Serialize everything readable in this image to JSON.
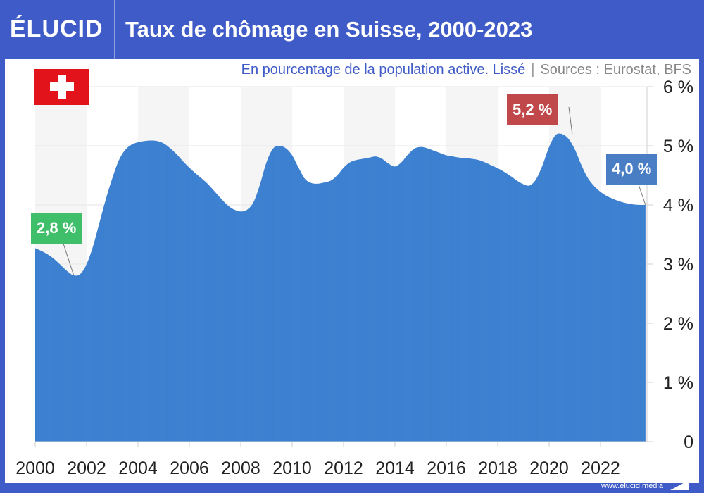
{
  "header": {
    "logo": "ÉLUCID",
    "title": "Taux de chômage en Suisse, 2000-2023"
  },
  "subtitle": {
    "description": "En pourcentage de la population active. Lissé",
    "separator": "|",
    "sources": "Sources : Eurostat, BFS"
  },
  "flag": {
    "country": "Suisse",
    "icon": "swiss-flag-icon"
  },
  "footer": {
    "url": "www.elucid.media",
    "icon": "elucid-mark-icon"
  },
  "colors": {
    "header_bg": "#3f5bc7",
    "area": "#3b7fd0",
    "label_min": "#3fbf6a",
    "label_max": "#c0474a",
    "label_last": "#4a7ec4",
    "flag_red": "#e3131b"
  },
  "chart_data": {
    "type": "area",
    "title": "Taux de chômage en Suisse, 2000-2023",
    "subtitle": "En pourcentage de la population active. Lissé",
    "xlabel": "",
    "ylabel": "",
    "xlim": [
      2000,
      2023.75
    ],
    "ylim": [
      0,
      6
    ],
    "x_ticks": [
      2000,
      2002,
      2004,
      2006,
      2008,
      2010,
      2012,
      2014,
      2016,
      2018,
      2020,
      2022
    ],
    "x_tick_labels": [
      "2000",
      "2002",
      "2004",
      "2006",
      "2008",
      "2010",
      "2012",
      "2014",
      "2016",
      "2018",
      "2020",
      "2022"
    ],
    "y_ticks": [
      0,
      1,
      2,
      3,
      4,
      5,
      6
    ],
    "y_tick_labels": [
      "0",
      "1 %",
      "2 %",
      "3 %",
      "4 %",
      "5 %",
      "6 %"
    ],
    "y_axis_side": "right",
    "grid": true,
    "alternating_year_bands": true,
    "series": [
      {
        "name": "Taux de chômage",
        "x": [
          2000.0,
          2000.25,
          2000.5,
          2000.75,
          2001.0,
          2001.25,
          2001.5,
          2001.75,
          2002.0,
          2002.25,
          2002.5,
          2002.75,
          2003.0,
          2003.25,
          2003.5,
          2003.75,
          2004.0,
          2004.25,
          2004.5,
          2004.75,
          2005.0,
          2005.25,
          2005.5,
          2005.75,
          2006.0,
          2006.25,
          2006.5,
          2006.75,
          2007.0,
          2007.25,
          2007.5,
          2007.75,
          2008.0,
          2008.25,
          2008.5,
          2008.75,
          2009.0,
          2009.25,
          2009.5,
          2009.75,
          2010.0,
          2010.25,
          2010.5,
          2010.75,
          2011.0,
          2011.25,
          2011.5,
          2011.75,
          2012.0,
          2012.25,
          2012.5,
          2012.75,
          2013.0,
          2013.25,
          2013.5,
          2013.75,
          2014.0,
          2014.25,
          2014.5,
          2014.75,
          2015.0,
          2015.25,
          2015.5,
          2015.75,
          2016.0,
          2016.25,
          2016.5,
          2016.75,
          2017.0,
          2017.25,
          2017.5,
          2017.75,
          2018.0,
          2018.25,
          2018.5,
          2018.75,
          2019.0,
          2019.25,
          2019.5,
          2019.75,
          2020.0,
          2020.25,
          2020.5,
          2020.75,
          2021.0,
          2021.25,
          2021.5,
          2021.75,
          2022.0,
          2022.25,
          2022.5,
          2022.75,
          2023.0,
          2023.25,
          2023.5,
          2023.75
        ],
        "values": [
          3.27,
          3.22,
          3.16,
          3.08,
          2.98,
          2.88,
          2.81,
          2.83,
          3.0,
          3.3,
          3.7,
          4.1,
          4.45,
          4.75,
          4.93,
          5.02,
          5.06,
          5.08,
          5.09,
          5.08,
          5.04,
          4.96,
          4.86,
          4.74,
          4.63,
          4.53,
          4.44,
          4.34,
          4.22,
          4.1,
          3.99,
          3.92,
          3.89,
          3.92,
          4.05,
          4.35,
          4.72,
          4.95,
          5.0,
          4.96,
          4.84,
          4.63,
          4.44,
          4.37,
          4.36,
          4.38,
          4.41,
          4.5,
          4.63,
          4.72,
          4.76,
          4.78,
          4.8,
          4.82,
          4.78,
          4.7,
          4.65,
          4.72,
          4.85,
          4.95,
          4.98,
          4.96,
          4.92,
          4.88,
          4.84,
          4.82,
          4.8,
          4.79,
          4.78,
          4.76,
          4.72,
          4.67,
          4.62,
          4.56,
          4.49,
          4.41,
          4.35,
          4.33,
          4.44,
          4.68,
          4.98,
          5.18,
          5.2,
          5.12,
          4.94,
          4.68,
          4.46,
          4.32,
          4.22,
          4.15,
          4.1,
          4.06,
          4.03,
          4.01,
          4.0,
          4.0
        ]
      }
    ],
    "annotations": [
      {
        "label": "2,8 %",
        "x": 2001.5,
        "y": 2.81,
        "kind": "min",
        "color": "#3fbf6a"
      },
      {
        "label": "5,2 %",
        "x": 2020.9,
        "y": 5.2,
        "kind": "max",
        "color": "#c0474a"
      },
      {
        "label": "4,0 %",
        "x": 2023.75,
        "y": 4.0,
        "kind": "last",
        "color": "#4a7ec4"
      }
    ]
  }
}
